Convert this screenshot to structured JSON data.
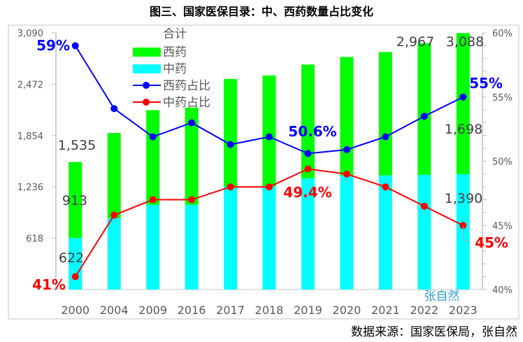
{
  "chart_data": {
    "type": "bar",
    "title": "图三、国家医保目录：中、西药数量占比变化",
    "source": "数据来源：国家医保局，张自然",
    "watermark": "张自然",
    "categories": [
      "2000",
      "2004",
      "2009",
      "2016",
      "2017",
      "2018",
      "2019",
      "2020",
      "2021",
      "2022",
      "2023"
    ],
    "legend": {
      "title": "合计",
      "position": "top-left"
    },
    "series": [
      {
        "name": "中药",
        "type": "bar",
        "stacked": true,
        "color": "#00ffff",
        "axis": "left",
        "values": [
          622,
          860,
          1020,
          1020,
          1238,
          1240,
          1339,
          1374,
          1374,
          1381,
          1390
        ]
      },
      {
        "name": "西药",
        "type": "bar",
        "stacked": true,
        "color": "#00ff00",
        "axis": "left",
        "values": [
          913,
          1025,
          1140,
          1170,
          1297,
          1337,
          1370,
          1426,
          1486,
          1586,
          1698
        ]
      },
      {
        "name": "西药占比",
        "type": "line",
        "color": "#0000ff",
        "axis": "right",
        "values": [
          59,
          54.1,
          51.9,
          53.0,
          51.3,
          51.9,
          50.6,
          50.9,
          51.9,
          53.5,
          55
        ]
      },
      {
        "name": "中药占比",
        "type": "line",
        "color": "#ff0000",
        "axis": "right",
        "values": [
          41,
          45.8,
          47.0,
          47.0,
          48.0,
          48.0,
          49.4,
          49.0,
          48.0,
          46.5,
          45
        ]
      }
    ],
    "totals": [
      1535,
      1885,
      2160,
      2190,
      2535,
      2577,
      2709,
      2800,
      2860,
      2967,
      3088
    ],
    "left_axis": {
      "ylim": [
        0,
        3090
      ],
      "ticks": [
        "618",
        "1,236",
        "1,854",
        "2,472",
        "3,090"
      ],
      "tick_values": [
        618,
        1236,
        1854,
        2472,
        3090
      ]
    },
    "right_axis": {
      "ylim": [
        40,
        60
      ],
      "ticks": [
        "40%",
        "45%",
        "50%",
        "55%",
        "60%"
      ],
      "tick_values": [
        40,
        45,
        50,
        55,
        60
      ]
    },
    "data_labels": [
      {
        "text": "1,535",
        "series": "合计",
        "index": 0
      },
      {
        "text": "913",
        "series": "西药",
        "index": 0
      },
      {
        "text": "622",
        "series": "中药",
        "index": 0
      },
      {
        "text": "2,967",
        "series": "合计",
        "index": 9
      },
      {
        "text": "3,088",
        "series": "合计",
        "index": 10
      },
      {
        "text": "1,698",
        "series": "西药",
        "index": 10
      },
      {
        "text": "1,390",
        "series": "中药",
        "index": 10
      }
    ],
    "pct_labels": [
      {
        "text": "59%",
        "series": "西药占比",
        "index": 0
      },
      {
        "text": "41%",
        "series": "中药占比",
        "index": 0
      },
      {
        "text": "50.6%",
        "series": "西药占比",
        "index": 6
      },
      {
        "text": "49.4%",
        "series": "中药占比",
        "index": 6
      },
      {
        "text": "55%",
        "series": "西药占比",
        "index": 10
      },
      {
        "text": "45%",
        "series": "中药占比",
        "index": 10
      }
    ],
    "grid": false
  }
}
